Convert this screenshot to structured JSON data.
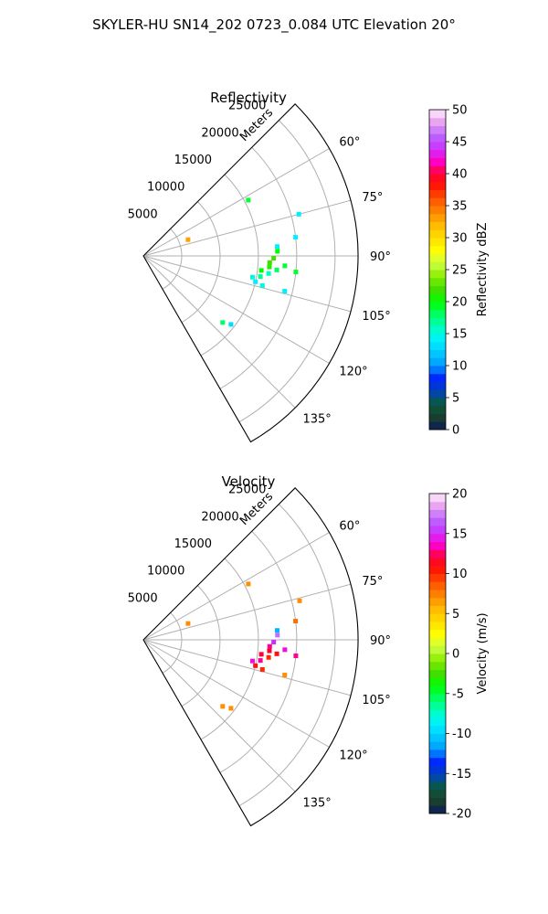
{
  "figure": {
    "suptitle": "SKYLER-HU  SN14_202  0723_0.084 UTC Elevation 20°"
  },
  "chart_data": [
    {
      "type": "polar_sector",
      "title": "Reflectivity",
      "range_label": "Meters",
      "range_ticks": [
        5000,
        10000,
        15000,
        20000,
        25000
      ],
      "range_max": 28000,
      "azimuth_range": [
        45,
        150
      ],
      "azimuth_ticks": [
        60,
        75,
        90,
        105,
        120,
        135
      ],
      "azimuth_gridlines": [
        45,
        60,
        75,
        90,
        105,
        120,
        135,
        150
      ],
      "grid": true,
      "colorbar": {
        "label": "Reflectivity dBZ",
        "ticks": [
          0,
          5,
          10,
          15,
          20,
          25,
          30,
          35,
          40,
          45,
          50
        ],
        "vmin": 0,
        "vmax": 50
      },
      "echoes": [
        {
          "az": 62,
          "r": 15500,
          "value": 19
        },
        {
          "az": 75,
          "r": 21000,
          "value": 14
        },
        {
          "az": 83,
          "r": 20000,
          "value": 14
        },
        {
          "az": 86,
          "r": 17500,
          "value": 14
        },
        {
          "az": 70,
          "r": 6200,
          "value": 33
        },
        {
          "az": 88,
          "r": 17500,
          "value": 20
        },
        {
          "az": 91,
          "r": 17000,
          "value": 22
        },
        {
          "az": 93,
          "r": 16500,
          "value": 22
        },
        {
          "az": 94,
          "r": 18500,
          "value": 19
        },
        {
          "az": 95,
          "r": 16500,
          "value": 21
        },
        {
          "az": 96,
          "r": 17500,
          "value": 18
        },
        {
          "az": 97,
          "r": 15500,
          "value": 20
        },
        {
          "az": 98,
          "r": 16500,
          "value": 16
        },
        {
          "az": 100,
          "r": 15500,
          "value": 17
        },
        {
          "az": 101,
          "r": 14500,
          "value": 15
        },
        {
          "az": 103,
          "r": 15000,
          "value": 14
        },
        {
          "az": 104,
          "r": 16000,
          "value": 15
        },
        {
          "az": 96,
          "r": 20000,
          "value": 19
        },
        {
          "az": 104,
          "r": 19000,
          "value": 14
        },
        {
          "az": 128,
          "r": 14500,
          "value": 13
        },
        {
          "az": 130,
          "r": 13500,
          "value": 18
        }
      ]
    },
    {
      "type": "polar_sector",
      "title": "Velocity",
      "range_label": "Meters",
      "range_ticks": [
        5000,
        10000,
        15000,
        20000,
        25000
      ],
      "range_max": 28000,
      "azimuth_range": [
        45,
        150
      ],
      "azimuth_ticks": [
        60,
        75,
        90,
        105,
        120,
        135
      ],
      "azimuth_gridlines": [
        45,
        60,
        75,
        90,
        105,
        120,
        135,
        150
      ],
      "grid": true,
      "colorbar": {
        "label": "Velocity (m/s)",
        "ticks": [
          -20,
          -15,
          -10,
          -5,
          0,
          5,
          10,
          15,
          20
        ],
        "vmin": -20,
        "vmax": 20
      },
      "echoes": [
        {
          "az": 62,
          "r": 15500,
          "value": 7
        },
        {
          "az": 76,
          "r": 21000,
          "value": 7
        },
        {
          "az": 83,
          "r": 20000,
          "value": 8
        },
        {
          "az": 86,
          "r": 17500,
          "value": -11
        },
        {
          "az": 70,
          "r": 6200,
          "value": 7
        },
        {
          "az": 88,
          "r": 17500,
          "value": 17
        },
        {
          "az": 91,
          "r": 17000,
          "value": 15
        },
        {
          "az": 93,
          "r": 16500,
          "value": 13
        },
        {
          "az": 94,
          "r": 18500,
          "value": 14
        },
        {
          "az": 95,
          "r": 16500,
          "value": 12
        },
        {
          "az": 96,
          "r": 17500,
          "value": 11
        },
        {
          "az": 97,
          "r": 15500,
          "value": 12
        },
        {
          "az": 98,
          "r": 16500,
          "value": 10
        },
        {
          "az": 100,
          "r": 15500,
          "value": 13
        },
        {
          "az": 101,
          "r": 14500,
          "value": 14
        },
        {
          "az": 103,
          "r": 15000,
          "value": 11
        },
        {
          "az": 104,
          "r": 16000,
          "value": 10
        },
        {
          "az": 96,
          "r": 20000,
          "value": 13
        },
        {
          "az": 104,
          "r": 19000,
          "value": 7
        },
        {
          "az": 128,
          "r": 14500,
          "value": 7
        },
        {
          "az": 130,
          "r": 13500,
          "value": 7
        }
      ]
    }
  ]
}
